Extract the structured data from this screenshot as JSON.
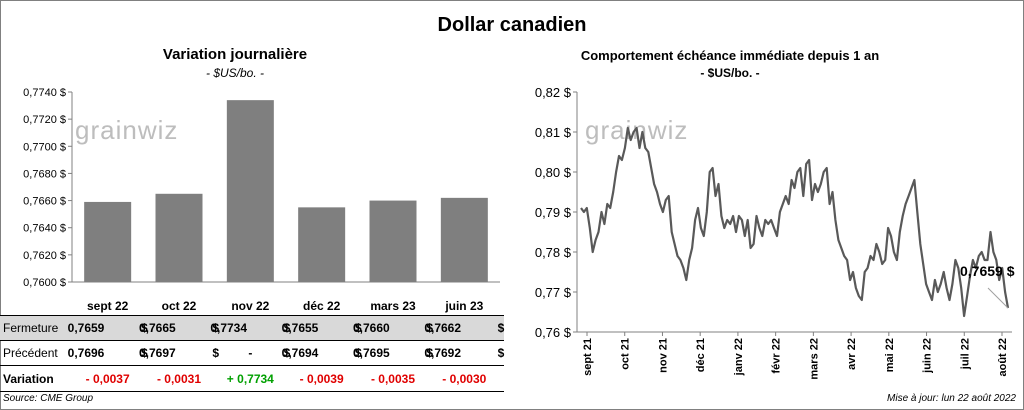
{
  "title": "Dollar canadien",
  "left_chart": {
    "title": "Variation  journalière",
    "unit": "- $US/bo. -"
  },
  "right_chart": {
    "title": "Comportement échéance immédiate depuis 1 an",
    "unit": "- $US/bo. -",
    "last_label": "0,7659 $"
  },
  "watermark": "grainwiz",
  "table": {
    "rows": [
      {
        "label": "Fermeture",
        "values": [
          "0,7659",
          "0,7665",
          "0,7734",
          "0,7655",
          "0,7660",
          "0,7662"
        ],
        "unit": "$"
      },
      {
        "label": "Précédent",
        "values": [
          "0,7696",
          "0,7697",
          "-",
          "0,7694",
          "0,7695",
          "0,7692"
        ],
        "unit": "$"
      }
    ],
    "variation_label": "Variation",
    "variations": [
      "- 0,0037",
      "- 0,0031",
      "+ 0,7734",
      "- 0,0039",
      "- 0,0035",
      "- 0,0030"
    ]
  },
  "footer": {
    "source": "Source: CME Group",
    "updated": "Mise à jour: lun 22 août 2022"
  },
  "colors": {
    "bar": "#7f7f7f",
    "line": "#595959",
    "negative": "#e00000",
    "positive": "#00a000",
    "row_fill": "#d9d9d9"
  },
  "chart_data": [
    {
      "type": "bar",
      "categories": [
        "sept 22",
        "oct 22",
        "nov 22",
        "déc 22",
        "mars 23",
        "juin 23"
      ],
      "values": [
        0.7659,
        0.7665,
        0.7734,
        0.7655,
        0.766,
        0.7662
      ],
      "ylim": [
        0.76,
        0.774
      ],
      "yticks": [
        "0,7600 $",
        "0,7620 $",
        "0,7640 $",
        "0,7660 $",
        "0,7680 $",
        "0,7700 $",
        "0,7720 $",
        "0,7740 $"
      ],
      "grid": false
    },
    {
      "type": "line",
      "x_labels": [
        "sept 21",
        "oct 21",
        "nov 21",
        "déc 21",
        "janv 22",
        "févr 22",
        "mars 22",
        "avr 22",
        "mai 22",
        "juin 22",
        "juil 22",
        "août 22"
      ],
      "values": [
        0.791,
        0.79,
        0.791,
        0.786,
        0.78,
        0.783,
        0.785,
        0.79,
        0.787,
        0.792,
        0.791,
        0.795,
        0.8,
        0.804,
        0.803,
        0.806,
        0.811,
        0.808,
        0.81,
        0.811,
        0.806,
        0.81,
        0.806,
        0.805,
        0.801,
        0.797,
        0.795,
        0.792,
        0.79,
        0.793,
        0.794,
        0.785,
        0.782,
        0.779,
        0.778,
        0.776,
        0.773,
        0.778,
        0.781,
        0.788,
        0.791,
        0.786,
        0.784,
        0.79,
        0.8,
        0.801,
        0.794,
        0.797,
        0.789,
        0.786,
        0.788,
        0.787,
        0.789,
        0.785,
        0.789,
        0.788,
        0.784,
        0.788,
        0.781,
        0.782,
        0.789,
        0.786,
        0.784,
        0.788,
        0.787,
        0.788,
        0.786,
        0.784,
        0.79,
        0.792,
        0.794,
        0.792,
        0.798,
        0.796,
        0.8,
        0.801,
        0.794,
        0.802,
        0.803,
        0.793,
        0.797,
        0.795,
        0.797,
        0.8,
        0.801,
        0.792,
        0.795,
        0.788,
        0.783,
        0.781,
        0.779,
        0.778,
        0.773,
        0.775,
        0.771,
        0.769,
        0.768,
        0.775,
        0.776,
        0.779,
        0.778,
        0.782,
        0.78,
        0.777,
        0.778,
        0.786,
        0.784,
        0.78,
        0.778,
        0.785,
        0.789,
        0.792,
        0.794,
        0.796,
        0.798,
        0.79,
        0.782,
        0.777,
        0.772,
        0.77,
        0.768,
        0.773,
        0.77,
        0.772,
        0.775,
        0.771,
        0.768,
        0.772,
        0.778,
        0.776,
        0.771,
        0.764,
        0.769,
        0.774,
        0.778,
        0.776,
        0.779,
        0.78,
        0.778,
        0.778,
        0.785,
        0.78,
        0.778,
        0.773,
        0.776,
        0.77,
        0.766
      ],
      "ylim": [
        0.76,
        0.82
      ],
      "yticks": [
        "0,76 $",
        "0,77 $",
        "0,78 $",
        "0,79 $",
        "0,80 $",
        "0,81 $",
        "0,82 $"
      ],
      "grid": false
    }
  ]
}
